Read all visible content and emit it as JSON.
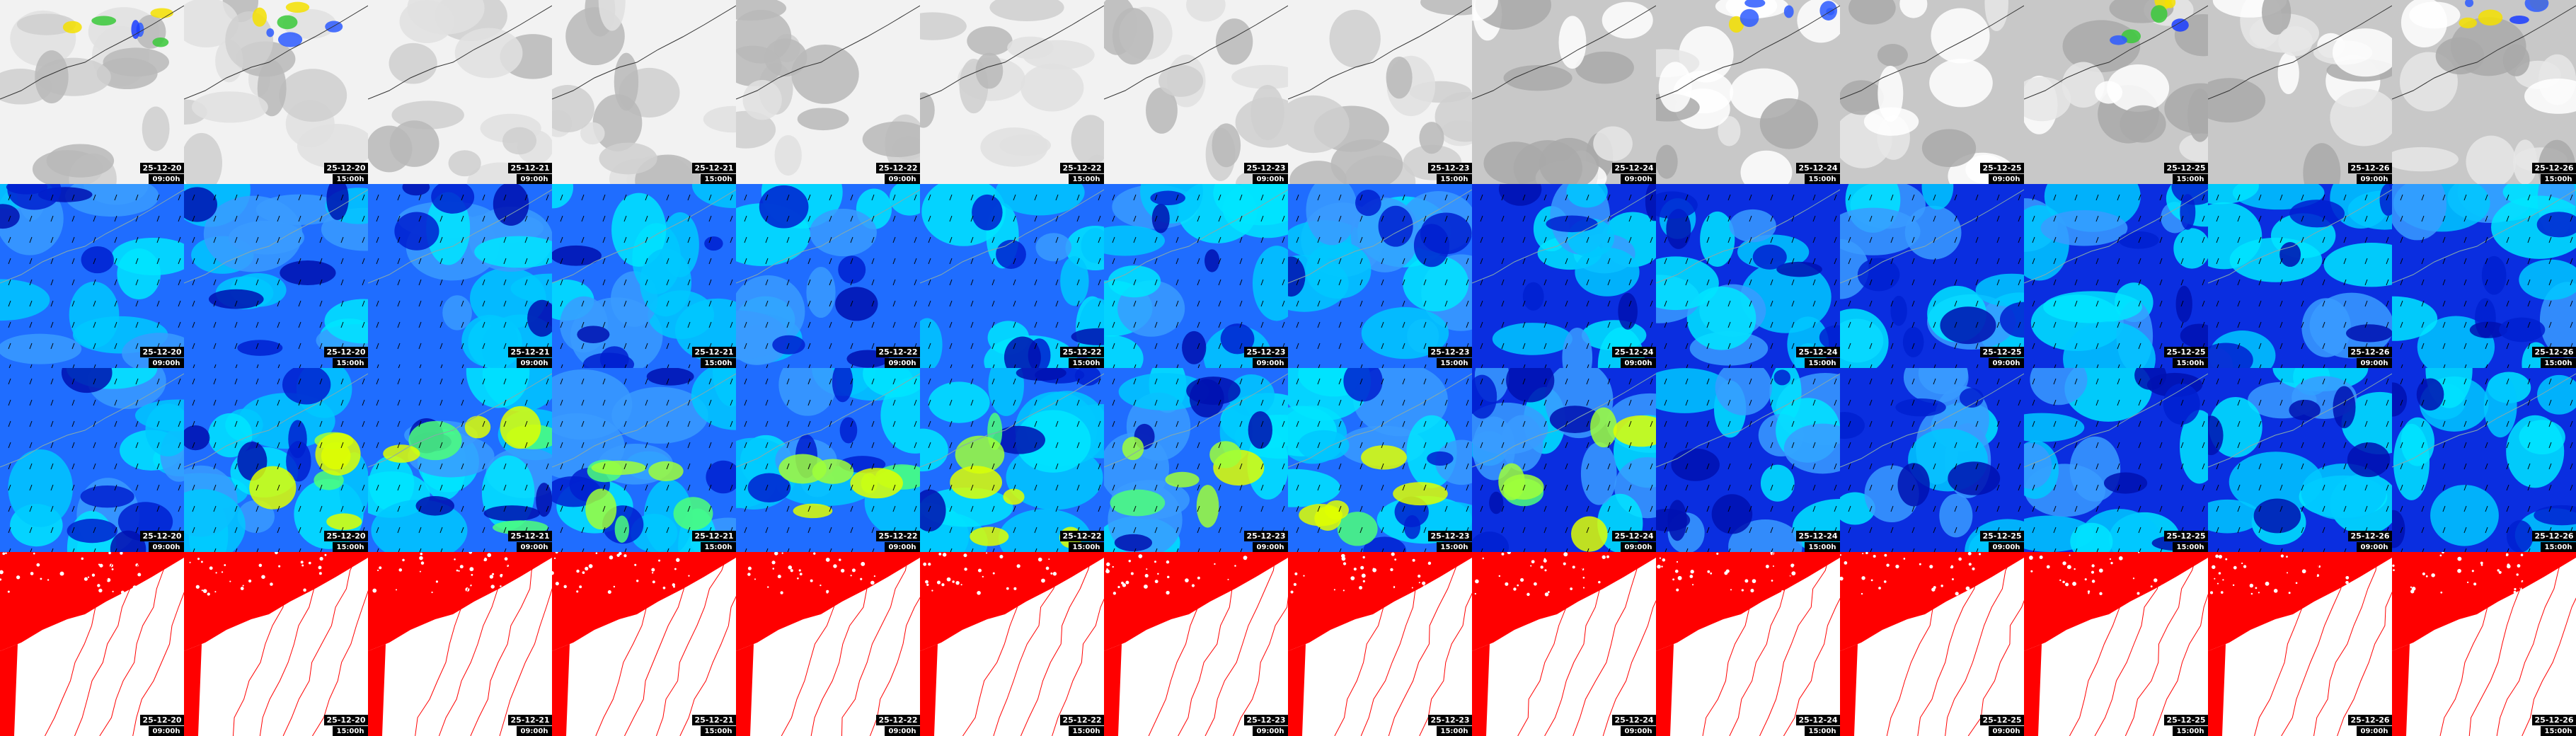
{
  "frames": [
    {
      "date": "25-12-20",
      "time": "09:00h"
    },
    {
      "date": "25-12-20",
      "time": "15:00h"
    },
    {
      "date": "25-12-21",
      "time": "09:00h"
    },
    {
      "date": "25-12-21",
      "time": "15:00h"
    },
    {
      "date": "25-12-22",
      "time": "09:00h"
    },
    {
      "date": "25-12-22",
      "time": "15:00h"
    },
    {
      "date": "25-12-23",
      "time": "09:00h"
    },
    {
      "date": "25-12-23",
      "time": "15:00h"
    },
    {
      "date": "25-12-24",
      "time": "09:00h"
    },
    {
      "date": "25-12-24",
      "time": "15:00h"
    },
    {
      "date": "25-12-25",
      "time": "09:00h"
    },
    {
      "date": "25-12-25",
      "time": "15:00h"
    },
    {
      "date": "25-12-26",
      "time": "09:00h"
    },
    {
      "date": "25-12-26",
      "time": "15:00h"
    }
  ]
}
